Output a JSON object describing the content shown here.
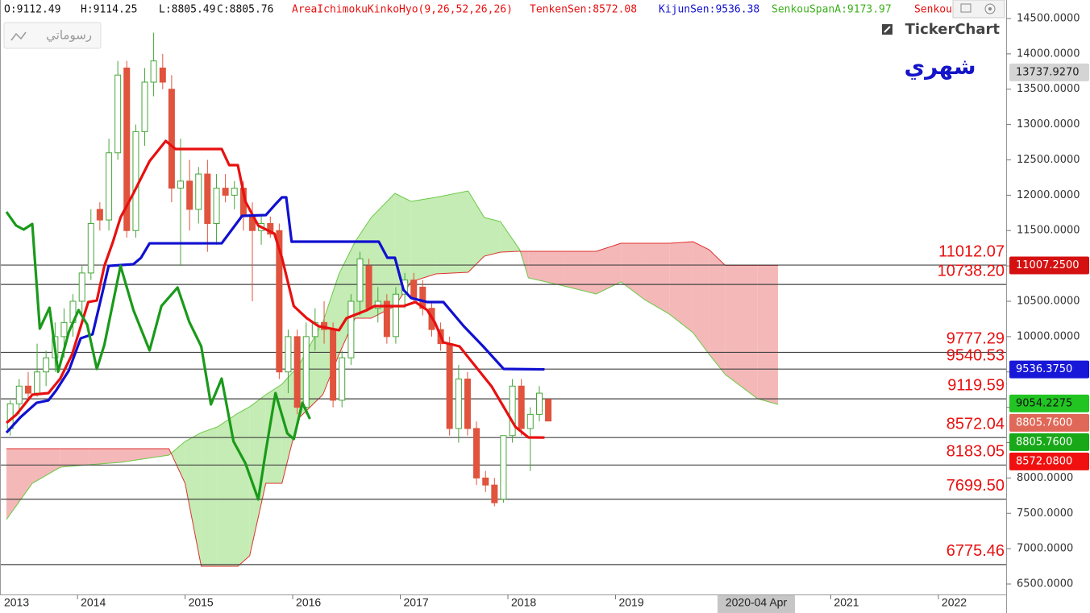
{
  "header": {
    "ohlc": [
      "O:9112.49",
      "H:9114.25",
      "L:8805.49",
      "C:8805.76"
    ],
    "indicator": {
      "text": "AreaIchimokuKinkoHyo(9,26,52,26,26)",
      "color": "#e81010"
    },
    "legend": [
      {
        "text": "TenkenSen:8572.08",
        "color": "#e81010"
      },
      {
        "text": "KijunSen:9536.38",
        "color": "#1010d0"
      },
      {
        "text": "SenkouSpanA:9173.97",
        "color": "#3cb01c"
      },
      {
        "text": "Senkou",
        "color": "#e81010"
      }
    ]
  },
  "toolbar_button": "رسوماتي",
  "logo": "TickerChart",
  "period": "شهري",
  "chart_data": {
    "type": "candlestick",
    "xlim": [
      2013.28,
      2022.63
    ],
    "xticks": [
      2013,
      2014,
      2015,
      2016,
      2017,
      2018,
      2019,
      2021,
      2022
    ],
    "crosshair_label": "2020-04 Apr",
    "ylim": [
      6352,
      14762
    ],
    "yticks": [
      {
        "value": 6500,
        "label": "6500.0000"
      },
      {
        "value": 7000,
        "label": "7000.0000"
      },
      {
        "value": 7500,
        "label": "7500.0000"
      },
      {
        "value": 8000,
        "label": "8000.0000"
      },
      {
        "value": 8500,
        "label": "8500.0000"
      },
      {
        "value": 9000,
        "label": "9000.0000"
      },
      {
        "value": 9500,
        "label": "9500.0000"
      },
      {
        "value": 10000,
        "label": "10000.0000"
      },
      {
        "value": 10500,
        "label": "10500.0000"
      },
      {
        "value": 11000,
        "label": "11000.0000"
      },
      {
        "value": 11500,
        "label": "11500.0000"
      },
      {
        "value": 12000,
        "label": "12000.0000"
      },
      {
        "value": 12500,
        "label": "12500.0000"
      },
      {
        "value": 13000,
        "label": "13000.0000"
      },
      {
        "value": 13500,
        "label": "13500.0000"
      },
      {
        "value": 14000,
        "label": "14000.0000"
      },
      {
        "value": 14500,
        "label": "14500.0000"
      }
    ],
    "up_color": "#46a63a",
    "down_color": "#e0533d",
    "x": [
      2013.375,
      2013.458,
      2013.542,
      2013.625,
      2013.708,
      2013.792,
      2013.875,
      2013.958,
      2014.042,
      2014.125,
      2014.208,
      2014.292,
      2014.375,
      2014.458,
      2014.542,
      2014.625,
      2014.708,
      2014.792,
      2014.875,
      2014.958,
      2015.042,
      2015.125,
      2015.208,
      2015.292,
      2015.375,
      2015.458,
      2015.542,
      2015.625,
      2015.708,
      2015.792,
      2015.875,
      2015.958,
      2016.042,
      2016.125,
      2016.208,
      2016.292,
      2016.375,
      2016.458,
      2016.542,
      2016.625,
      2016.708,
      2016.792,
      2016.875,
      2016.958,
      2017.042,
      2017.125,
      2017.208,
      2017.292,
      2017.375,
      2017.458,
      2017.542,
      2017.625,
      2017.708,
      2017.792,
      2017.875,
      2017.958,
      2018.042,
      2018.125,
      2018.208,
      2018.292,
      2018.375
    ],
    "open": [
      8700,
      9050,
      9300,
      9200,
      9500,
      9700,
      10000,
      10200,
      10500,
      10900,
      11800,
      11650,
      12600,
      13800,
      11500,
      12900,
      13600,
      13800,
      13500,
      12100,
      12200,
      11800,
      12300,
      11600,
      12100,
      12000,
      12100,
      11700,
      11500,
      11600,
      11500,
      9500,
      10000,
      9000,
      10000,
      10200,
      10100,
      9100,
      9700,
      10500,
      11000,
      10400,
      10500,
      10000,
      10600,
      10800,
      10700,
      10400,
      10100,
      9900,
      8700,
      9400,
      8700,
      8000,
      7900,
      7700,
      8600,
      9300,
      8700,
      8900,
      9112.49
    ],
    "high": [
      9100,
      9400,
      9500,
      9900,
      9800,
      10200,
      10400,
      10600,
      11000,
      11800,
      11900,
      12800,
      13900,
      13900,
      13000,
      13800,
      14300,
      14000,
      13700,
      12800,
      12500,
      12400,
      12500,
      12300,
      12300,
      12200,
      12200,
      11900,
      11700,
      11700,
      11600,
      10100,
      10100,
      10200,
      10400,
      10500,
      10200,
      9800,
      10600,
      11200,
      11100,
      10700,
      10600,
      10700,
      10900,
      10900,
      10800,
      10500,
      10200,
      10000,
      9600,
      9500,
      8800,
      8100,
      8000,
      8600,
      9400,
      9400,
      9000,
      9300,
      9114.25
    ],
    "low": [
      8600,
      8900,
      9100,
      9150,
      9300,
      9500,
      9700,
      10000,
      10300,
      10800,
      11500,
      11500,
      12500,
      11400,
      11400,
      12700,
      13400,
      13500,
      11900,
      11000,
      11500,
      11600,
      11200,
      11300,
      11900,
      11800,
      11500,
      10500,
      11300,
      11400,
      9400,
      9200,
      8900,
      8900,
      9800,
      9900,
      9000,
      9000,
      9600,
      10300,
      10400,
      10200,
      9900,
      9900,
      10400,
      10500,
      10300,
      10000,
      9800,
      8600,
      8500,
      8600,
      7900,
      7800,
      7600,
      7650,
      8500,
      8600,
      8100,
      8800,
      8805.49
    ],
    "close": [
      9050,
      9300,
      9200,
      9500,
      9700,
      10000,
      10200,
      10500,
      10900,
      11600,
      11650,
      12600,
      13700,
      11500,
      12900,
      13600,
      13900,
      13600,
      12100,
      12200,
      11800,
      12300,
      11600,
      12100,
      12000,
      12100,
      11700,
      11500,
      11600,
      11450,
      9500,
      10000,
      9000,
      10000,
      10200,
      10100,
      9100,
      9700,
      10500,
      11100,
      10400,
      10500,
      10000,
      10600,
      10800,
      10550,
      10400,
      10100,
      9900,
      8700,
      9400,
      8700,
      8000,
      7900,
      7650,
      8600,
      9300,
      8700,
      8900,
      9200,
      8805.76
    ],
    "lines": [
      {
        "color": "#e81010",
        "x": [
          2013.34,
          2013.43,
          2013.58,
          2013.73,
          2013.84,
          2013.95,
          2014.1,
          2014.18,
          2014.25,
          2014.33,
          2014.4,
          2014.52,
          2014.67,
          2014.82,
          2014.91,
          2015.34,
          2015.41,
          2015.49,
          2015.56,
          2015.68,
          2015.83,
          2015.9,
          2016.01,
          2016.13,
          2016.24,
          2016.43,
          2016.5,
          2016.69,
          2016.76,
          2017.03,
          2017.14,
          2017.25,
          2017.32,
          2017.4,
          2017.55,
          2017.7,
          2017.85,
          2017.96,
          2018.07,
          2018.19,
          2018.34
        ],
        "values": [
          8779,
          8893,
          9178,
          9201,
          9406,
          9748,
          10489,
          10511,
          11001,
          11343,
          11685,
          12027,
          12483,
          12768,
          12654,
          12654,
          12426,
          12426,
          11913,
          11571,
          11457,
          11115,
          10432,
          10261,
          10147,
          10090,
          10261,
          10375,
          10432,
          10432,
          10489,
          10375,
          10204,
          9919,
          9862,
          9577,
          9292,
          9007,
          8722,
          8574,
          8572.08
        ]
      },
      {
        "color": "#1010d0",
        "x": [
          2013.34,
          2013.47,
          2013.62,
          2013.73,
          2013.8,
          2013.92,
          2014.03,
          2014.14,
          2014.22,
          2014.29,
          2014.52,
          2014.59,
          2014.67,
          2015.34,
          2015.53,
          2015.75,
          2015.83,
          2015.9,
          2015.94,
          2015.99,
          2016.8,
          2016.88,
          2016.95,
          2017.03,
          2017.1,
          2017.25,
          2017.4,
          2017.59,
          2017.77,
          2017.96,
          2018.34
        ],
        "values": [
          8642,
          8859,
          9064,
          9098,
          9235,
          9520,
          9976,
          10033,
          10546,
          11001,
          11024,
          11115,
          11320,
          11320,
          11708,
          11719,
          11856,
          11970,
          11970,
          11343,
          11343,
          11115,
          11115,
          10660,
          10546,
          10489,
          10489,
          10147,
          9862,
          9543,
          9536.38
        ]
      },
      {
        "color": "#1a9a1a",
        "x": [
          2013.34,
          2013.43,
          2013.5,
          2013.58,
          2013.65,
          2013.74,
          2013.82,
          2013.92,
          2014.01,
          2014.09,
          2014.18,
          2014.25,
          2014.4,
          2014.52,
          2014.67,
          2014.78,
          2014.93,
          2015.04,
          2015.15,
          2015.24,
          2015.34,
          2015.45,
          2015.56,
          2015.68,
          2015.75,
          2015.84,
          2015.95,
          2016.01,
          2016.09,
          2016.16
        ],
        "values": [
          11765,
          11571,
          11514,
          11594,
          10113,
          10409,
          9503,
          10067,
          10375,
          10170,
          9543,
          9885,
          11001,
          10375,
          9805,
          10432,
          10694,
          10204,
          9862,
          9041,
          9406,
          8517,
          8210,
          7697,
          8380,
          9201,
          8631,
          8551,
          9064,
          8836
        ]
      }
    ],
    "cloud": {
      "up_color": "#c4ecb4",
      "down_color": "#f4b8b8",
      "span_a_color": "#6cc848",
      "span_b_color": "#e03030",
      "x": [
        2013.34,
        2013.58,
        2013.84,
        2014.1,
        2014.4,
        2014.85,
        2015.0,
        2015.15,
        2015.3,
        2015.49,
        2015.6,
        2015.75,
        2015.9,
        2016.05,
        2016.28,
        2016.43,
        2016.58,
        2016.73,
        2016.95,
        2017.1,
        2017.33,
        2017.63,
        2017.78,
        2017.93,
        2018.11,
        2018.19,
        2018.52,
        2018.82,
        2019.05,
        2019.27,
        2019.5,
        2019.72,
        2019.87,
        2020.02,
        2020.32,
        2020.51
      ],
      "span_a": [
        7412,
        7924,
        8152,
        8187,
        8221,
        8323,
        8517,
        8642,
        8722,
        8916,
        9007,
        9178,
        9326,
        9577,
        10204,
        10887,
        11343,
        11685,
        12027,
        11913,
        11970,
        12061,
        11685,
        11628,
        11229,
        10831,
        10717,
        10603,
        10774,
        10523,
        10318,
        10056,
        9748,
        9463,
        9121,
        9041
      ],
      "span_b": [
        8415,
        8415,
        8415,
        8415,
        8415,
        8415,
        7924,
        6751,
        6751,
        6751,
        6899,
        7924,
        7924,
        8836,
        9178,
        9748,
        10261,
        10261,
        10432,
        10774,
        10887,
        10910,
        11138,
        11195,
        11207,
        11207,
        11207,
        11207,
        11320,
        11320,
        11320,
        11343,
        11229,
        11007,
        11007,
        11007
      ]
    },
    "levels": {
      "color": "#444444",
      "values": [
        11012.07,
        10738.2,
        9777.29,
        9540.53,
        9119.59,
        8572.04,
        8183.05,
        7699.5,
        6775.46
      ],
      "value_labels": [
        "11012.07",
        "10738.20",
        "9777.29",
        "9540.53",
        "9119.59",
        "8572.04",
        "8183.05",
        "7699.50",
        "6775.46"
      ]
    },
    "badges": [
      {
        "value": 13737.927,
        "label": "13737.9270",
        "color": "#d4d4d4",
        "text_color": "#222222"
      },
      {
        "value": 11007.25,
        "label": "11007.2500",
        "color": "#d41010",
        "text_color": "#ffffff"
      },
      {
        "value": 9536.375,
        "label": "9536.3750",
        "color": "#1818d8",
        "text_color": "#ffffff"
      },
      {
        "value": 9054.2275,
        "label": "9054.2275",
        "color": "#22c422",
        "text_color": "#111111"
      },
      {
        "value": 8805.76,
        "label": "8805.7600",
        "color": "#e06858",
        "text_color": "#ffffff"
      },
      {
        "value": 8805.76,
        "label": "8805.7600",
        "color": "#18a818",
        "text_color": "#ffffff"
      },
      {
        "value": 8572.08,
        "label": "8572.0800",
        "color": "#f01010",
        "text_color": "#ffffff"
      }
    ]
  }
}
